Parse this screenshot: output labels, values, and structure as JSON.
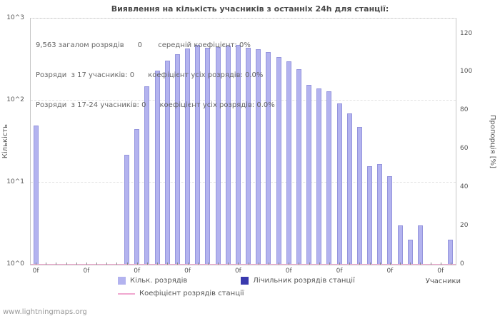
{
  "title": "Виявлення на кількість учасників з останніх 24h для станції:",
  "annotations": {
    "line1": "9,563 загалом розрядів      0       середній коефіцієнт: 0%",
    "line2": "Розряди  з 17 учасників: 0      коефіцієнт усіх розрядів: 0.0%",
    "line3": "Розряди  з 17-24 учасників: 0      коефіцієнт усіх розрядів: 0.0%"
  },
  "watermark": "www.lightningmaps.org",
  "chart_data": {
    "type": "bar",
    "title": "Виявлення на кількість учасників з останніх 24h для станції:",
    "xlabel": "Учасники",
    "ylabel_left": "Кількість",
    "ylabel_right": "Пропорція [%]",
    "y_scale": "log",
    "ylim": [
      1,
      1000
    ],
    "right_axis_max": 128,
    "y_ticks_left": [
      "10^0",
      "10^1",
      "10^2",
      "10^3"
    ],
    "y_ticks_right": [
      0,
      20,
      40,
      60,
      80,
      100,
      120
    ],
    "x_max": 41,
    "x_tick_positions": [
      0,
      5,
      10,
      15,
      20,
      25,
      30,
      35,
      40
    ],
    "x_tick_labels": [
      "0f",
      "0f",
      "0f",
      "0f",
      "0f",
      "0f",
      "0f",
      "0f",
      "0f"
    ],
    "grid": "horizontal-decades",
    "legend_position": "bottom",
    "series": [
      {
        "name": "Кільк. розрядів",
        "type": "bar",
        "color": "#b3b3ef",
        "points": [
          {
            "x": 0,
            "y": 50
          },
          {
            "x": 9,
            "y": 22
          },
          {
            "x": 10,
            "y": 45
          },
          {
            "x": 11,
            "y": 150
          },
          {
            "x": 12,
            "y": 230
          },
          {
            "x": 13,
            "y": 310
          },
          {
            "x": 14,
            "y": 370
          },
          {
            "x": 15,
            "y": 430
          },
          {
            "x": 16,
            "y": 480
          },
          {
            "x": 17,
            "y": 440
          },
          {
            "x": 18,
            "y": 450
          },
          {
            "x": 19,
            "y": 465
          },
          {
            "x": 20,
            "y": 475
          },
          {
            "x": 21,
            "y": 440
          },
          {
            "x": 22,
            "y": 425
          },
          {
            "x": 23,
            "y": 390
          },
          {
            "x": 24,
            "y": 340
          },
          {
            "x": 25,
            "y": 300
          },
          {
            "x": 26,
            "y": 240
          },
          {
            "x": 27,
            "y": 155
          },
          {
            "x": 28,
            "y": 140
          },
          {
            "x": 29,
            "y": 130
          },
          {
            "x": 30,
            "y": 92
          },
          {
            "x": 31,
            "y": 70
          },
          {
            "x": 32,
            "y": 48
          },
          {
            "x": 33,
            "y": 16
          },
          {
            "x": 34,
            "y": 17
          },
          {
            "x": 35,
            "y": 12
          },
          {
            "x": 36,
            "y": 3
          },
          {
            "x": 37,
            "y": 2
          },
          {
            "x": 38,
            "y": 3
          },
          {
            "x": 41,
            "y": 2
          }
        ]
      },
      {
        "name": "Лічильник розрядів станції",
        "type": "bar",
        "color": "#3a3aae",
        "points": []
      },
      {
        "name": "Коефіцієнт розрядів станції",
        "type": "line",
        "color": "#f0a8d0",
        "constant_value": 0
      }
    ],
    "legend": [
      {
        "label": "Кільк. розрядів",
        "color": "#b3b3ef",
        "swatch": "box"
      },
      {
        "label": "Лічильник розрядів станції",
        "color": "#3a3aae",
        "swatch": "box"
      },
      {
        "label": "Коефіцієнт розрядів станції",
        "color": "#f0a8d0",
        "swatch": "line"
      }
    ]
  }
}
